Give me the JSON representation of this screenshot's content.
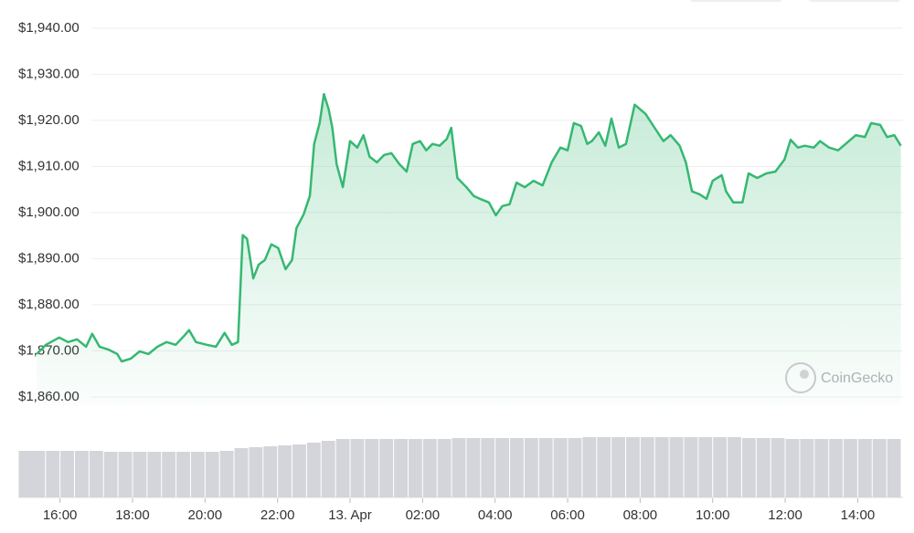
{
  "chart_data": [
    {
      "type": "line",
      "watermark": "CoinGecko",
      "color": "#35b872",
      "grid": true,
      "x": [
        15.36,
        15.61,
        15.98,
        16.22,
        16.47,
        16.72,
        16.89,
        17.09,
        17.33,
        17.58,
        17.7,
        17.95,
        18.2,
        18.44,
        18.69,
        18.94,
        19.19,
        19.43,
        19.56,
        19.75,
        20.05,
        20.3,
        20.54,
        20.74,
        20.91,
        21.04,
        21.16,
        21.33,
        21.48,
        21.65,
        21.83,
        22.02,
        22.22,
        22.4,
        22.52,
        22.72,
        22.89,
        23.01,
        23.16,
        23.28,
        23.41,
        23.51,
        23.63,
        23.8,
        24.0,
        24.2,
        24.37,
        24.54,
        24.74,
        24.94,
        25.14,
        25.36,
        25.56,
        25.73,
        25.93,
        26.1,
        26.27,
        26.47,
        26.67,
        26.79,
        26.96,
        27.21,
        27.41,
        27.58,
        27.83,
        28.02,
        28.2,
        28.4,
        28.59,
        28.82,
        29.06,
        29.31,
        29.56,
        29.8,
        30.0,
        30.17,
        30.37,
        30.54,
        30.67,
        30.86,
        31.04,
        31.21,
        31.41,
        31.61,
        31.85,
        32.15,
        32.4,
        32.64,
        32.84,
        33.09,
        33.26,
        33.43,
        33.63,
        33.83,
        34.0,
        34.25,
        34.37,
        34.57,
        34.82,
        34.99,
        35.23,
        35.48,
        35.73,
        35.98,
        36.15,
        36.35,
        36.54,
        36.79,
        36.96,
        37.21,
        37.46,
        37.7,
        37.95,
        38.2,
        38.37,
        38.62,
        38.81,
        39.01,
        39.19
      ],
      "values": [
        1869.3,
        1871.3,
        1872.9,
        1871.9,
        1872.5,
        1870.9,
        1873.7,
        1870.9,
        1870.3,
        1869.3,
        1867.7,
        1868.3,
        1869.9,
        1869.3,
        1870.9,
        1871.9,
        1871.3,
        1873.3,
        1874.5,
        1871.9,
        1871.3,
        1870.9,
        1873.9,
        1871.3,
        1871.9,
        1895.1,
        1894.3,
        1885.7,
        1888.7,
        1889.7,
        1893.1,
        1892.3,
        1887.7,
        1889.7,
        1896.6,
        1899.6,
        1903.6,
        1914.9,
        1919.4,
        1925.7,
        1922.4,
        1918.4,
        1910.5,
        1905.5,
        1915.5,
        1914.1,
        1916.8,
        1912.1,
        1910.9,
        1912.5,
        1912.9,
        1910.5,
        1908.9,
        1914.9,
        1915.5,
        1913.5,
        1914.9,
        1914.5,
        1916.0,
        1918.4,
        1907.5,
        1905.5,
        1903.6,
        1903.0,
        1902.2,
        1899.4,
        1901.4,
        1901.8,
        1906.5,
        1905.5,
        1906.9,
        1905.9,
        1910.9,
        1914.1,
        1913.5,
        1919.4,
        1918.8,
        1914.9,
        1915.5,
        1917.4,
        1914.5,
        1920.4,
        1914.1,
        1914.9,
        1923.4,
        1921.4,
        1918.4,
        1915.5,
        1916.8,
        1914.5,
        1910.9,
        1904.6,
        1904.0,
        1903.0,
        1906.9,
        1908.1,
        1904.6,
        1902.2,
        1902.2,
        1908.5,
        1907.5,
        1908.5,
        1908.9,
        1911.5,
        1915.8,
        1914.1,
        1914.5,
        1914.1,
        1915.5,
        1914.1,
        1913.5,
        1915.1,
        1916.8,
        1916.4,
        1919.4,
        1919.0,
        1916.4,
        1916.8,
        1914.5
      ],
      "xlim": [
        14.85,
        39.25
      ],
      "xticks": [
        {
          "value": 16,
          "label": "16:00"
        },
        {
          "value": 18,
          "label": "18:00"
        },
        {
          "value": 20,
          "label": "20:00"
        },
        {
          "value": 22,
          "label": "22:00"
        },
        {
          "value": 24,
          "label": "13. Apr"
        },
        {
          "value": 26,
          "label": "02:00"
        },
        {
          "value": 28,
          "label": "04:00"
        },
        {
          "value": 30,
          "label": "06:00"
        },
        {
          "value": 32,
          "label": "08:00"
        },
        {
          "value": 34,
          "label": "10:00"
        },
        {
          "value": 36,
          "label": "12:00"
        },
        {
          "value": 38,
          "label": "14:00"
        }
      ],
      "ylim": [
        1858,
        1946
      ],
      "yticks": [
        {
          "value": 1860,
          "label": "$1,860.00"
        },
        {
          "value": 1870,
          "label": "$1,870.00"
        },
        {
          "value": 1880,
          "label": "$1,880.00"
        },
        {
          "value": 1890,
          "label": "$1,890.00"
        },
        {
          "value": 1900,
          "label": "$1,900.00"
        },
        {
          "value": 1910,
          "label": "$1,910.00"
        },
        {
          "value": 1920,
          "label": "$1,920.00"
        },
        {
          "value": 1930,
          "label": "$1,930.00"
        },
        {
          "value": 1940,
          "label": "$1,940.00"
        }
      ]
    },
    {
      "type": "bar",
      "color": "#d4d5da",
      "x": [
        15.0,
        15.4,
        15.8,
        16.2,
        16.6,
        17.0,
        17.4,
        17.8,
        18.2,
        18.6,
        19.0,
        19.4,
        19.8,
        20.2,
        20.6,
        21.0,
        21.4,
        21.8,
        22.2,
        22.6,
        23.0,
        23.4,
        23.8,
        24.2,
        24.6,
        25.0,
        25.4,
        25.8,
        26.2,
        26.6,
        27.0,
        27.4,
        27.8,
        28.2,
        28.6,
        29.0,
        29.4,
        29.8,
        30.2,
        30.6,
        31.0,
        31.4,
        31.8,
        32.2,
        32.6,
        33.0,
        33.4,
        33.8,
        34.2,
        34.6,
        35.0,
        35.4,
        35.8,
        36.2,
        36.6,
        37.0,
        37.4,
        37.8,
        38.2,
        38.6,
        39.0
      ],
      "values": [
        51,
        51,
        51,
        51,
        51,
        51,
        50,
        50,
        50,
        50,
        50,
        50,
        50,
        50,
        51,
        54,
        55,
        56,
        57,
        58,
        60,
        62,
        64,
        64,
        64,
        64,
        64,
        64,
        64,
        64,
        65,
        65,
        65,
        65,
        65,
        65,
        65,
        65,
        65,
        66,
        66,
        66,
        66,
        66,
        66,
        66,
        66,
        66,
        66,
        66,
        65,
        65,
        65,
        64,
        64,
        64,
        64,
        64,
        64,
        64,
        64
      ],
      "ylim": [
        0,
        100
      ]
    }
  ]
}
